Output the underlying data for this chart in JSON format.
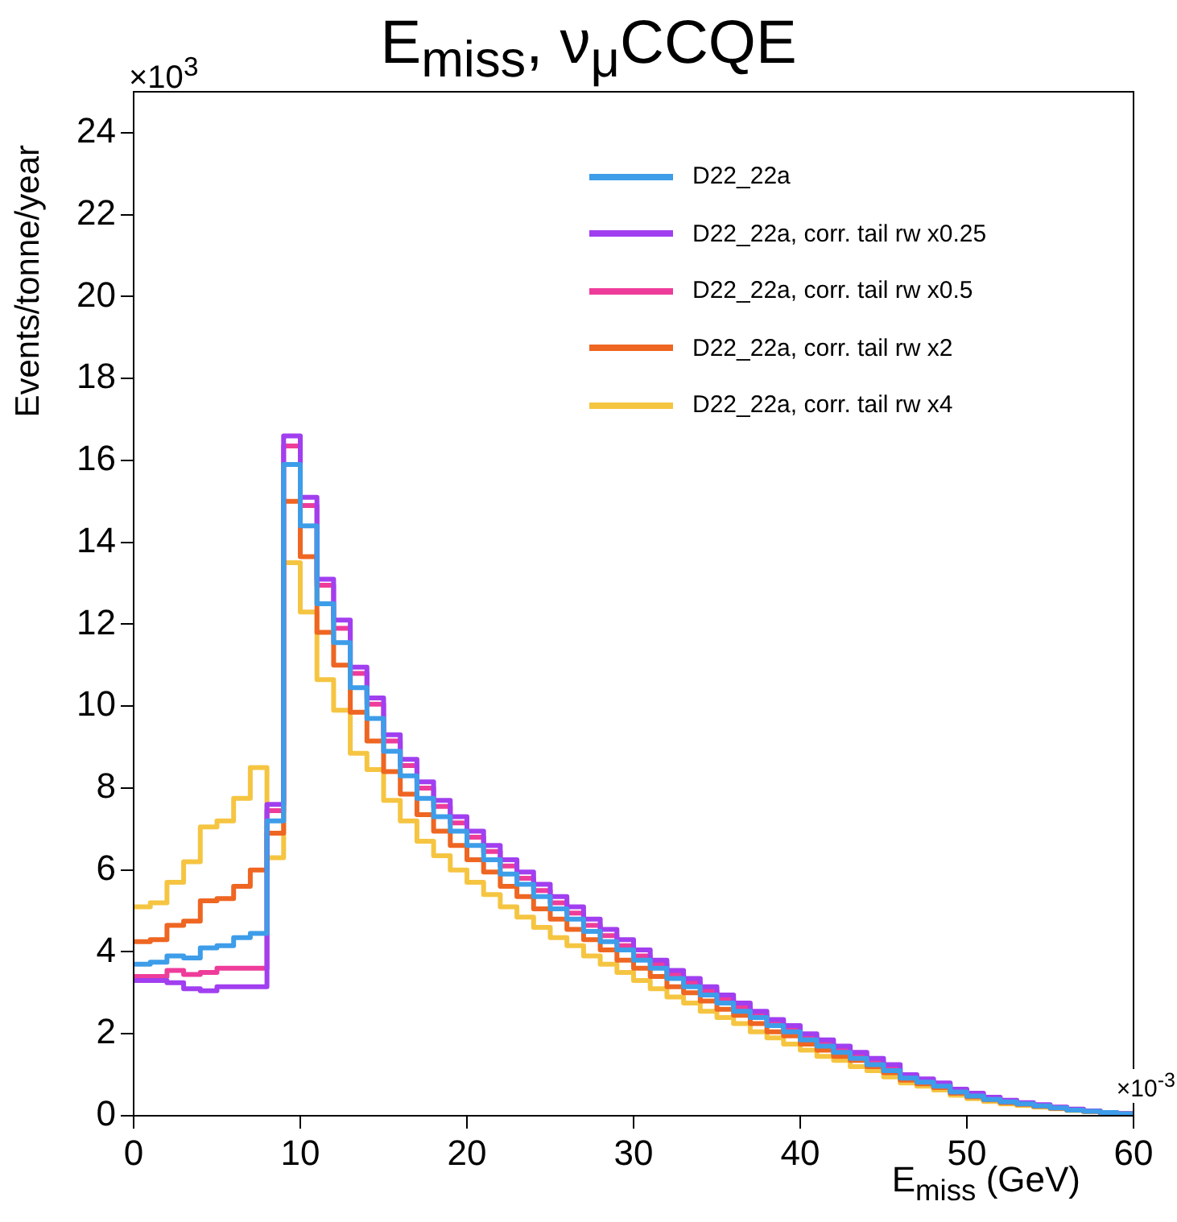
{
  "chart_data": {
    "type": "histogram",
    "title": "E$_{miss}$, ν$_{μ}$CCQE",
    "xlabel": "E$_{miss}$ (GeV)",
    "ylabel": "Events/tonne/year",
    "annotations": [
      "×10$^{3}$",
      "×10$^{-3}$"
    ],
    "bins": [
      0,
      1,
      2,
      3,
      4,
      5,
      6,
      7,
      8,
      9,
      10,
      11,
      12,
      13,
      14,
      15,
      16,
      17,
      18,
      19,
      20,
      21,
      22,
      23,
      24,
      25,
      26,
      27,
      28,
      29,
      30,
      31,
      32,
      33,
      34,
      35,
      36,
      37,
      38,
      39,
      40,
      41,
      42,
      43,
      44,
      45,
      46,
      47,
      48,
      49,
      50,
      51,
      52,
      53,
      54,
      55,
      56,
      57,
      58,
      59,
      60
    ],
    "series": [
      {
        "name": "D22_22a",
        "color": "#3d9de9",
        "values": [
          3.7,
          3.75,
          3.9,
          3.85,
          4.1,
          4.15,
          4.35,
          4.45,
          7.2,
          15.9,
          14.4,
          12.5,
          11.55,
          10.45,
          9.7,
          8.9,
          8.3,
          7.75,
          7.3,
          6.95,
          6.6,
          6.25,
          5.9,
          5.65,
          5.35,
          5.05,
          4.8,
          4.5,
          4.25,
          4.05,
          3.8,
          3.6,
          3.35,
          3.15,
          2.95,
          2.75,
          2.55,
          2.4,
          2.2,
          2.05,
          1.85,
          1.7,
          1.55,
          1.4,
          1.25,
          1.1,
          0.92,
          0.82,
          0.72,
          0.58,
          0.48,
          0.4,
          0.34,
          0.29,
          0.24,
          0.19,
          0.14,
          0.11,
          0.08,
          0.05
        ]
      },
      {
        "name": "D22_22a, corr. tail rw x0.25",
        "color": "#a13ff0",
        "values": [
          3.3,
          3.3,
          3.25,
          3.1,
          3.05,
          3.15,
          3.15,
          3.15,
          7.6,
          16.6,
          15.1,
          13.1,
          12.1,
          10.95,
          10.2,
          9.3,
          8.7,
          8.15,
          7.7,
          7.3,
          6.95,
          6.6,
          6.25,
          5.95,
          5.65,
          5.35,
          5.1,
          4.8,
          4.55,
          4.3,
          4.05,
          3.8,
          3.55,
          3.35,
          3.15,
          2.95,
          2.75,
          2.55,
          2.35,
          2.2,
          2.0,
          1.85,
          1.7,
          1.55,
          1.4,
          1.25,
          1.0,
          0.9,
          0.8,
          0.65,
          0.55,
          0.45,
          0.38,
          0.32,
          0.27,
          0.21,
          0.16,
          0.12,
          0.08,
          0.05
        ]
      },
      {
        "name": "D22_22a, corr. tail rw x0.5",
        "color": "#ee3c9a",
        "values": [
          3.4,
          3.4,
          3.55,
          3.45,
          3.5,
          3.6,
          3.6,
          3.6,
          7.45,
          16.35,
          14.9,
          12.95,
          11.9,
          10.8,
          10.05,
          9.15,
          8.55,
          8.0,
          7.55,
          7.15,
          6.8,
          6.45,
          6.1,
          5.8,
          5.5,
          5.2,
          4.95,
          4.65,
          4.4,
          4.15,
          3.9,
          3.7,
          3.45,
          3.25,
          3.05,
          2.85,
          2.65,
          2.45,
          2.25,
          2.1,
          1.9,
          1.75,
          1.6,
          1.45,
          1.3,
          1.15,
          0.95,
          0.85,
          0.75,
          0.6,
          0.5,
          0.42,
          0.35,
          0.3,
          0.25,
          0.2,
          0.15,
          0.12,
          0.08,
          0.05
        ]
      },
      {
        "name": "D22_22a, corr. tail rw x2",
        "color": "#ee6622",
        "values": [
          4.25,
          4.3,
          4.65,
          4.75,
          5.25,
          5.3,
          5.6,
          6.0,
          6.9,
          15.0,
          13.65,
          11.8,
          11.0,
          9.85,
          9.15,
          8.4,
          7.85,
          7.35,
          6.95,
          6.6,
          6.25,
          5.95,
          5.6,
          5.35,
          5.05,
          4.8,
          4.55,
          4.3,
          4.05,
          3.8,
          3.6,
          3.4,
          3.15,
          3.0,
          2.8,
          2.6,
          2.45,
          2.25,
          2.05,
          1.95,
          1.75,
          1.6,
          1.45,
          1.35,
          1.2,
          1.05,
          0.87,
          0.78,
          0.69,
          0.55,
          0.46,
          0.39,
          0.32,
          0.28,
          0.23,
          0.18,
          0.14,
          0.11,
          0.07,
          0.05
        ]
      },
      {
        "name": "D22_22a, corr. tail rw x4",
        "color": "#f5c542",
        "values": [
          5.1,
          5.2,
          5.7,
          6.2,
          7.05,
          7.2,
          7.75,
          8.5,
          6.3,
          13.5,
          12.3,
          10.65,
          9.9,
          8.85,
          8.45,
          7.7,
          7.2,
          6.7,
          6.35,
          6.0,
          5.7,
          5.4,
          5.1,
          4.85,
          4.6,
          4.35,
          4.15,
          3.9,
          3.7,
          3.5,
          3.3,
          3.1,
          2.9,
          2.75,
          2.55,
          2.4,
          2.25,
          2.05,
          1.9,
          1.75,
          1.6,
          1.45,
          1.35,
          1.2,
          1.1,
          0.95,
          0.8,
          0.72,
          0.63,
          0.5,
          0.42,
          0.35,
          0.29,
          0.25,
          0.21,
          0.17,
          0.13,
          0.1,
          0.07,
          0.04
        ]
      }
    ],
    "xlim": [
      0,
      60
    ],
    "ylim": [
      0,
      25
    ],
    "xticks": [
      0,
      10,
      20,
      30,
      40,
      50,
      60
    ],
    "yticks": [
      0,
      2,
      4,
      6,
      8,
      10,
      12,
      14,
      16,
      18,
      20,
      22,
      24
    ],
    "grid": false,
    "legend": "top right"
  }
}
